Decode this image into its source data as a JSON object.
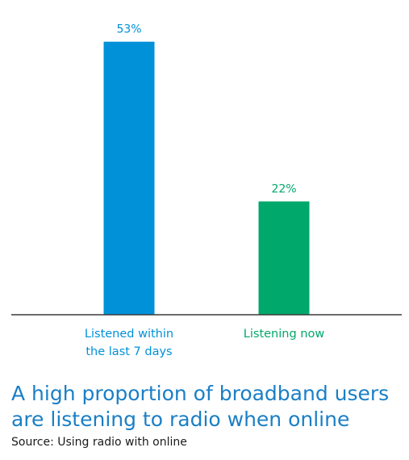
{
  "chart_data": {
    "type": "bar",
    "categories": [
      [
        "Listened within",
        "the last 7 days"
      ],
      [
        "Listening now"
      ]
    ],
    "values": [
      53,
      22
    ],
    "value_labels": [
      "53%",
      "22%"
    ],
    "colors": [
      "#0091d9",
      "#00a86b"
    ],
    "ylim": [
      0,
      60
    ],
    "grid": false,
    "legend": "none"
  },
  "caption": {
    "line1": "A high proportion of broadband users",
    "line2": "are listening to radio when online"
  },
  "source": "Source: Using radio with online"
}
